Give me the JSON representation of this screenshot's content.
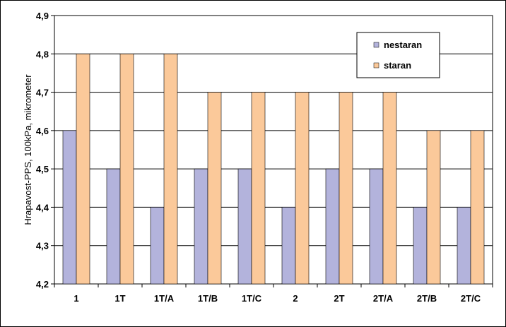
{
  "chart_data": {
    "type": "bar",
    "title": "",
    "xlabel": "",
    "ylabel": "Hrapavost-PPS, 100kPa, mikrometer",
    "ylim": [
      4.2,
      4.9
    ],
    "yticks": [
      4.2,
      4.3,
      4.4,
      4.5,
      4.6,
      4.7,
      4.8,
      4.9
    ],
    "ytick_labels": [
      "4,2",
      "4,3",
      "4,4",
      "4,5",
      "4,6",
      "4,7",
      "4,8",
      "4,9"
    ],
    "grid": true,
    "legend_position": "top-right",
    "categories": [
      "1",
      "1T",
      "1T/A",
      "1T/B",
      "1T/C",
      "2",
      "2T",
      "2T/A",
      "2T/B",
      "2T/C"
    ],
    "series": [
      {
        "name": "nestaran",
        "color": "#b3b3dc",
        "values": [
          4.6,
          4.5,
          4.4,
          4.5,
          4.5,
          4.4,
          4.5,
          4.5,
          4.4,
          4.4
        ]
      },
      {
        "name": "staran",
        "color": "#fbc99a",
        "values": [
          4.8,
          4.8,
          4.8,
          4.7,
          4.7,
          4.7,
          4.7,
          4.7,
          4.6,
          4.6
        ]
      }
    ]
  }
}
